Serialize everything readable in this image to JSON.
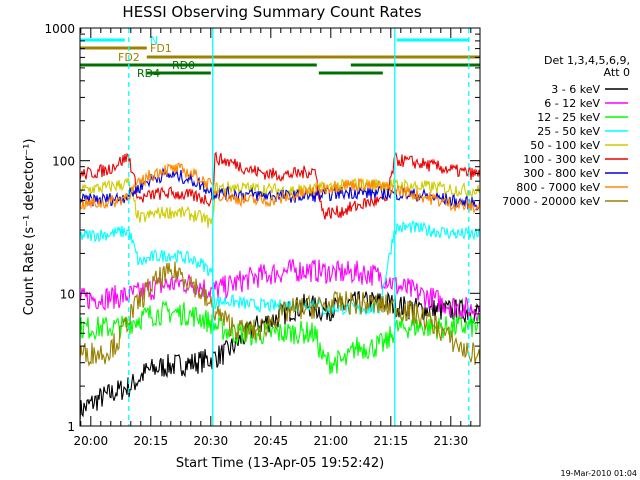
{
  "chart_data": {
    "type": "line",
    "title": "HESSI Observing Summary Count Rates",
    "xlabel": "Start Time (13-Apr-05 19:52:42)",
    "ylabel": "Count Rate (s⁻¹ detector⁻¹)",
    "y_scale": "log",
    "ylim": [
      1,
      1000
    ],
    "xlim_minutes": [
      -2.7,
      97.3
    ],
    "x_ticks": [
      {
        "t": 0,
        "label": "20:00"
      },
      {
        "t": 15,
        "label": "20:15"
      },
      {
        "t": 30,
        "label": "20:30"
      },
      {
        "t": 45,
        "label": "20:45"
      },
      {
        "t": 60,
        "label": "21:00"
      },
      {
        "t": 75,
        "label": "21:15"
      },
      {
        "t": 90,
        "label": "21:30"
      }
    ],
    "y_ticks": [
      {
        "v": 1,
        "label": "1"
      },
      {
        "v": 10,
        "label": "10"
      },
      {
        "v": 100,
        "label": "100"
      },
      {
        "v": 1000,
        "label": "1000"
      }
    ],
    "legend_header": [
      "Det 1,3,4,5,6,9,",
      "Att 0"
    ],
    "legend_placement": "right",
    "night_boundaries": [
      {
        "t": 9.5,
        "style": "dashed"
      },
      {
        "t": 30.5,
        "style": "solid"
      },
      {
        "t": 76.0,
        "style": "solid"
      },
      {
        "t": 94.5,
        "style": "dashed"
      }
    ],
    "flags": [
      {
        "label": "N",
        "color": "#00ffff",
        "segments": [
          [
            -2.7,
            8.5
          ],
          [
            76.5,
            94.5
          ]
        ]
      },
      {
        "label": "FD1",
        "color": "#a08000",
        "segments": [
          [
            -2.7,
            14.0
          ]
        ]
      },
      {
        "label": "FD2",
        "color": "#a08000",
        "segments": [
          [
            14.0,
            97.3
          ]
        ]
      },
      {
        "label": "RD0",
        "color": "#007000",
        "segments": [
          [
            -2.7,
            30.5
          ],
          [
            30.5,
            56.5
          ],
          [
            65.0,
            97.3
          ]
        ]
      },
      {
        "label": "RD4",
        "color": "#007000",
        "segments": [
          [
            14.0,
            30.0
          ],
          [
            57.0,
            73.0
          ]
        ]
      }
    ],
    "series": [
      {
        "name": "3 - 6 keV",
        "color": "#000000",
        "points": [
          [
            -2.7,
            1.3
          ],
          [
            2,
            1.6
          ],
          [
            6,
            1.8
          ],
          [
            10,
            2.0
          ],
          [
            14,
            2.6
          ],
          [
            18,
            2.8
          ],
          [
            22,
            2.9
          ],
          [
            26,
            3.0
          ],
          [
            30,
            3.2
          ],
          [
            34,
            3.6
          ],
          [
            38,
            4.6
          ],
          [
            42,
            5.8
          ],
          [
            46,
            6.4
          ],
          [
            50,
            7.5
          ],
          [
            54,
            8.2
          ],
          [
            58,
            7.4
          ],
          [
            62,
            7.9
          ],
          [
            66,
            8.4
          ],
          [
            70,
            8.6
          ],
          [
            74,
            8.5
          ],
          [
            78,
            7.9
          ],
          [
            82,
            7.6
          ],
          [
            86,
            7.5
          ],
          [
            90,
            7.4
          ],
          [
            94,
            7.3
          ],
          [
            97.3,
            7.2
          ]
        ]
      },
      {
        "name": "6 - 12 keV",
        "color": "#ff00ff",
        "points": [
          [
            -2.7,
            9.0
          ],
          [
            4,
            9.3
          ],
          [
            9,
            9.5
          ],
          [
            12,
            10.0
          ],
          [
            18,
            11.5
          ],
          [
            22,
            12.0
          ],
          [
            26,
            11.8
          ],
          [
            30,
            10.5
          ],
          [
            34,
            11.2
          ],
          [
            38,
            12.5
          ],
          [
            42,
            13.5
          ],
          [
            46,
            14.2
          ],
          [
            50,
            14.8
          ],
          [
            54,
            15.0
          ],
          [
            58,
            14.6
          ],
          [
            62,
            14.2
          ],
          [
            66,
            14.4
          ],
          [
            70,
            14.0
          ],
          [
            74,
            13.0
          ],
          [
            76,
            11.5
          ],
          [
            80,
            10.5
          ],
          [
            84,
            9.5
          ],
          [
            88,
            8.5
          ],
          [
            92,
            7.8
          ],
          [
            97.3,
            7.5
          ]
        ]
      },
      {
        "name": "12 - 25 keV",
        "color": "#00ff00",
        "points": [
          [
            -2.7,
            5.5
          ],
          [
            3,
            5.5
          ],
          [
            8,
            5.6
          ],
          [
            12,
            6.5
          ],
          [
            16,
            7.0
          ],
          [
            20,
            7.2
          ],
          [
            24,
            7.0
          ],
          [
            28,
            6.5
          ],
          [
            32,
            5.5
          ],
          [
            36,
            5.0
          ],
          [
            40,
            4.9
          ],
          [
            44,
            5.0
          ],
          [
            48,
            5.0
          ],
          [
            52,
            5.1
          ],
          [
            56,
            5.0
          ],
          [
            58,
            3.2
          ],
          [
            60,
            3.0
          ],
          [
            64,
            3.1
          ],
          [
            66,
            3.9
          ],
          [
            70,
            3.9
          ],
          [
            74,
            4.2
          ],
          [
            76,
            5.4
          ],
          [
            80,
            5.6
          ],
          [
            84,
            5.6
          ],
          [
            88,
            5.5
          ],
          [
            92,
            5.6
          ],
          [
            97.3,
            5.6
          ]
        ]
      },
      {
        "name": "25 - 50 keV",
        "color": "#00ffff",
        "points": [
          [
            -2.7,
            27.0
          ],
          [
            4,
            28.0
          ],
          [
            9.5,
            29.5
          ],
          [
            12,
            17.0
          ],
          [
            16,
            19.0
          ],
          [
            20,
            19.5
          ],
          [
            24,
            18.5
          ],
          [
            28,
            16.5
          ],
          [
            30.5,
            14.0
          ],
          [
            31,
            8.5
          ],
          [
            34,
            8.8
          ],
          [
            40,
            8.2
          ],
          [
            46,
            8.0
          ],
          [
            52,
            8.3
          ],
          [
            57,
            8.5
          ],
          [
            58,
            7.5
          ],
          [
            62,
            7.8
          ],
          [
            66,
            7.6
          ],
          [
            70,
            7.7
          ],
          [
            72,
            7.5
          ],
          [
            76,
            31.0
          ],
          [
            80,
            31.5
          ],
          [
            84,
            30.0
          ],
          [
            88,
            29.0
          ],
          [
            92,
            28.0
          ],
          [
            97.3,
            27.5
          ]
        ]
      },
      {
        "name": "50 - 100 keV",
        "color": "#cccc00",
        "points": [
          [
            -2.7,
            60.0
          ],
          [
            4,
            63.0
          ],
          [
            9.5,
            68.0
          ],
          [
            12,
            36.0
          ],
          [
            16,
            40.0
          ],
          [
            20,
            41.0
          ],
          [
            24,
            40.0
          ],
          [
            28,
            37.0
          ],
          [
            30.5,
            33.0
          ],
          [
            31,
            62.0
          ],
          [
            36,
            63.0
          ],
          [
            42,
            61.0
          ],
          [
            48,
            60.0
          ],
          [
            54,
            60.0
          ],
          [
            58,
            62.0
          ],
          [
            62,
            64.0
          ],
          [
            66,
            66.0
          ],
          [
            70,
            66.0
          ],
          [
            74,
            66.0
          ],
          [
            78,
            65.0
          ],
          [
            82,
            64.0
          ],
          [
            86,
            63.0
          ],
          [
            90,
            61.0
          ],
          [
            94,
            60.0
          ],
          [
            97.3,
            59.0
          ]
        ]
      },
      {
        "name": "100 - 300 keV",
        "color": "#ee0000",
        "points": [
          [
            -2.7,
            78.0
          ],
          [
            4,
            85.0
          ],
          [
            9.5,
            108.0
          ],
          [
            12,
            51.0
          ],
          [
            16,
            56.0
          ],
          [
            20,
            57.0
          ],
          [
            24,
            55.0
          ],
          [
            28,
            52.0
          ],
          [
            30.5,
            50.0
          ],
          [
            31,
            105.0
          ],
          [
            36,
            95.0
          ],
          [
            40,
            85.0
          ],
          [
            44,
            80.0
          ],
          [
            48,
            78.0
          ],
          [
            52,
            80.0
          ],
          [
            56,
            85.0
          ],
          [
            58,
            40.0
          ],
          [
            62,
            41.0
          ],
          [
            66,
            45.0
          ],
          [
            70,
            49.0
          ],
          [
            74,
            50.0
          ],
          [
            76,
            102.0
          ],
          [
            80,
            98.0
          ],
          [
            84,
            93.0
          ],
          [
            88,
            88.0
          ],
          [
            92,
            83.0
          ],
          [
            97.3,
            78.0
          ]
        ]
      },
      {
        "name": "300 - 800 keV",
        "color": "#0000dd",
        "points": [
          [
            -2.7,
            50.0
          ],
          [
            3,
            51.0
          ],
          [
            7,
            52.0
          ],
          [
            10,
            56.0
          ],
          [
            14,
            70.0
          ],
          [
            18,
            78.0
          ],
          [
            22,
            77.0
          ],
          [
            26,
            70.0
          ],
          [
            30.5,
            58.0
          ],
          [
            31,
            57.0
          ],
          [
            36,
            56.0
          ],
          [
            42,
            55.0
          ],
          [
            48,
            54.0
          ],
          [
            54,
            54.0
          ],
          [
            58,
            55.0
          ],
          [
            62,
            57.0
          ],
          [
            66,
            58.0
          ],
          [
            70,
            57.0
          ],
          [
            74,
            57.0
          ],
          [
            78,
            56.0
          ],
          [
            82,
            55.0
          ],
          [
            86,
            53.0
          ],
          [
            90,
            50.0
          ],
          [
            94,
            48.0
          ],
          [
            97.3,
            47.0
          ]
        ]
      },
      {
        "name": "800 - 7000 keV",
        "color": "#ff8800",
        "points": [
          [
            -2.7,
            47.0
          ],
          [
            3,
            48.0
          ],
          [
            7,
            50.0
          ],
          [
            10,
            58.0
          ],
          [
            14,
            75.0
          ],
          [
            18,
            86.0
          ],
          [
            22,
            86.0
          ],
          [
            26,
            78.0
          ],
          [
            30,
            65.0
          ],
          [
            32,
            56.0
          ],
          [
            36,
            52.0
          ],
          [
            40,
            50.0
          ],
          [
            44,
            50.0
          ],
          [
            48,
            52.0
          ],
          [
            52,
            56.0
          ],
          [
            56,
            60.0
          ],
          [
            60,
            64.0
          ],
          [
            64,
            66.0
          ],
          [
            68,
            66.0
          ],
          [
            72,
            64.0
          ],
          [
            76,
            61.0
          ],
          [
            80,
            57.0
          ],
          [
            84,
            53.0
          ],
          [
            88,
            49.0
          ],
          [
            92,
            46.0
          ],
          [
            97.3,
            44.0
          ]
        ]
      },
      {
        "name": "7000 - 20000 keV",
        "color": "#998000",
        "points": [
          [
            -2.7,
            3.5
          ],
          [
            4,
            3.6
          ],
          [
            7,
            4.5
          ],
          [
            10,
            7.0
          ],
          [
            14,
            10.5
          ],
          [
            18,
            13.5
          ],
          [
            22,
            14.5
          ],
          [
            26,
            11.5
          ],
          [
            30,
            8.0
          ],
          [
            34,
            6.0
          ],
          [
            38,
            5.2
          ],
          [
            42,
            5.2
          ],
          [
            46,
            6.5
          ],
          [
            50,
            7.5
          ],
          [
            54,
            7.8
          ],
          [
            58,
            8.0
          ],
          [
            62,
            8.5
          ],
          [
            66,
            8.4
          ],
          [
            70,
            8.3
          ],
          [
            74,
            8.0
          ],
          [
            78,
            7.5
          ],
          [
            82,
            6.8
          ],
          [
            86,
            5.8
          ],
          [
            90,
            4.5
          ],
          [
            94,
            3.6
          ],
          [
            97.3,
            3.4
          ]
        ]
      }
    ]
  },
  "footer": {
    "date": "19-Mar-2010 01:04"
  }
}
